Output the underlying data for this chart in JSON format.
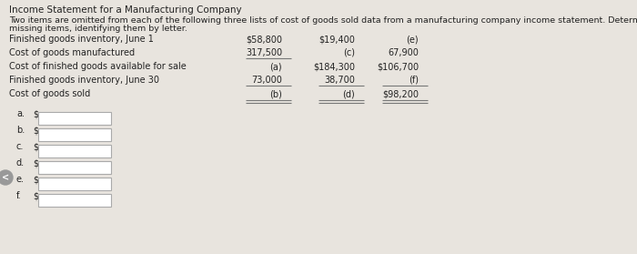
{
  "title": "Income Statement for a Manufacturing Company",
  "subtitle_line1": "Two items are omitted from each of the following three lists of cost of goods sold data from a manufacturing company income statement. Determine the amounts of the",
  "subtitle_line2": "missing items, identifying them by letter.",
  "bg_color": "#e8e4de",
  "rows": [
    {
      "label": "Finished goods inventory, June 1",
      "col1": "$58,800",
      "col2": "$19,400",
      "col3": "(e)",
      "underline_col1": false,
      "underline_all": false
    },
    {
      "label": "Cost of goods manufactured",
      "col1": "317,500",
      "col2": "(c)",
      "col3": "67,900",
      "underline_col1": true,
      "underline_all": false
    },
    {
      "label": "Cost of finished goods available for sale",
      "col1": "(a)",
      "col2": "$184,300",
      "col3": "$106,700",
      "underline_col1": false,
      "underline_all": false
    },
    {
      "label": "Finished goods inventory, June 30",
      "col1": "73,000",
      "col2": "38,700",
      "col3": "(f)",
      "underline_col1": false,
      "underline_all": true
    },
    {
      "label": "Cost of goods sold",
      "col1": "(b)",
      "col2": "(d)",
      "col3": "$98,200",
      "underline_col1": false,
      "underline_all": true
    }
  ],
  "answer_labels": [
    "a.",
    "b.",
    "c.",
    "d.",
    "e.",
    "f."
  ],
  "answer_prefix": "$",
  "text_color": "#222222",
  "line_color": "#777777",
  "box_color": "#ffffff",
  "box_edge_color": "#aaaaaa"
}
